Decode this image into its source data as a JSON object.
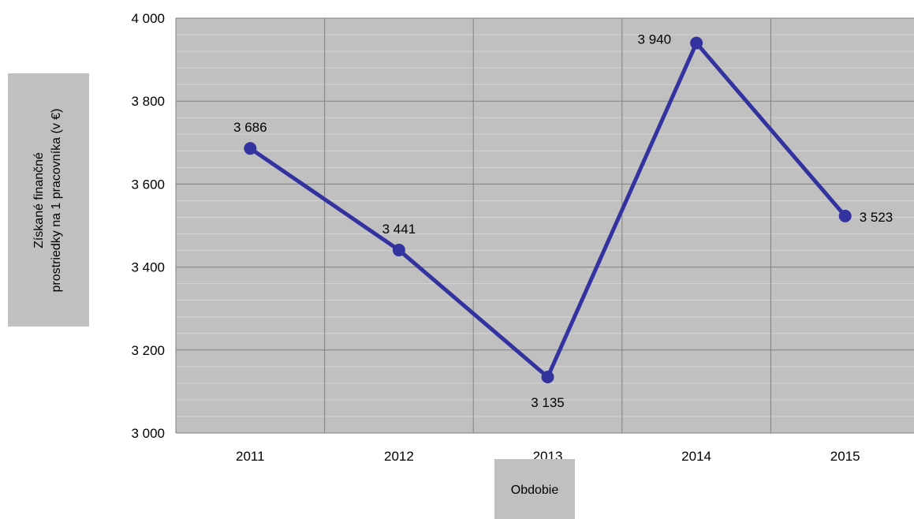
{
  "chart_data": {
    "type": "line",
    "categories": [
      "2011",
      "2012",
      "2013",
      "2014",
      "2015"
    ],
    "series": [
      {
        "values": [
          3686,
          3441,
          3135,
          3940,
          3523
        ],
        "data_labels": [
          "3 686",
          "3 441",
          "3 135",
          "3 940",
          "3 523"
        ]
      }
    ],
    "title": "",
    "xlabel": "Obdobie",
    "ylabel_lines": [
      "Získané finančné",
      "prostriedky na 1 pracovníka (v €)"
    ],
    "ylim": [
      3000,
      4000
    ],
    "yticks": [
      3000,
      3200,
      3400,
      3600,
      3800,
      4000
    ],
    "ytick_labels": [
      "3 000",
      "3 200",
      "3 400",
      "3 600",
      "3 800",
      "4 000"
    ],
    "grid": true,
    "legend": "none",
    "colors": {
      "series": "#3333a0",
      "plot_background": "#c0c0c0",
      "grid_major": "#808080",
      "grid_minor": "#d4d4d4",
      "title_box": "#c0c0c0"
    }
  }
}
